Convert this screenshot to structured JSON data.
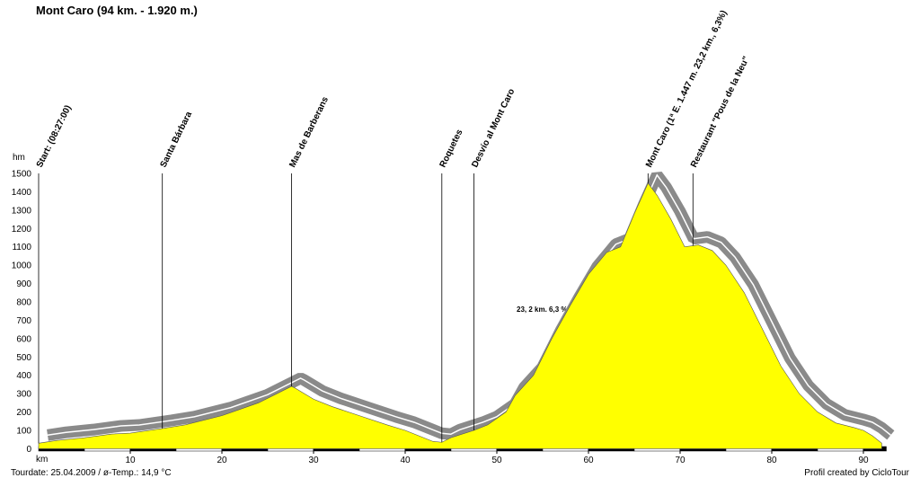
{
  "chart_data": {
    "type": "area",
    "title": "Mont Caro (94 km. - 1.920 m.)",
    "y_label": "hm",
    "x_label": "km",
    "x": [
      0,
      2,
      5,
      8,
      10,
      13.5,
      16,
      20,
      24,
      27.6,
      28,
      30,
      32,
      35,
      38,
      40,
      42,
      43,
      44,
      45,
      47.5,
      49,
      51,
      52,
      54,
      56,
      58,
      60,
      62,
      63.5,
      65,
      66.5,
      67.5,
      69,
      70.5,
      72,
      73.5,
      75,
      77,
      79,
      81,
      83,
      85,
      87,
      89,
      90,
      91,
      92
    ],
    "values": [
      30,
      45,
      60,
      80,
      85,
      110,
      130,
      180,
      250,
      340,
      330,
      270,
      230,
      180,
      130,
      100,
      60,
      40,
      35,
      60,
      100,
      130,
      200,
      290,
      400,
      600,
      780,
      950,
      1070,
      1100,
      1280,
      1447,
      1380,
      1250,
      1100,
      1110,
      1080,
      1000,
      850,
      650,
      450,
      300,
      200,
      140,
      115,
      100,
      70,
      30
    ],
    "color": "#ffff00",
    "relief_color": "#8a8a8a",
    "xlim": [
      0,
      92.5
    ],
    "xticks": [
      10,
      20,
      30,
      40,
      50,
      60,
      70,
      80,
      90
    ],
    "ylim": [
      0,
      1500
    ],
    "yticks": [
      0,
      100,
      200,
      300,
      400,
      500,
      600,
      700,
      800,
      900,
      1000,
      1100,
      1200,
      1300,
      1400,
      1500
    ],
    "waypoints": [
      {
        "label": "Start: (08:27:00)",
        "km": 0
      },
      {
        "label": "Santa Bárbara",
        "km": 13.5
      },
      {
        "label": "Mas de Barberans",
        "km": 27.6
      },
      {
        "label": "Roquetes",
        "km": 44
      },
      {
        "label": "Desvío al Mont Caro",
        "km": 47.5
      },
      {
        "label": "Mont Caro (1ª E. 1.447 m. 23,2 km., 6,3%)",
        "km": 66.5
      },
      {
        "label": "Restaurant \"Pous de la Neu\"",
        "km": 71.4
      }
    ],
    "annotation": "23, 2 km. 6,3 %",
    "footer_left": "Tourdate: 25.04.2009 / ø-Temp.: 14,9 °C",
    "footer_right": "Profil created by CicloTour"
  }
}
